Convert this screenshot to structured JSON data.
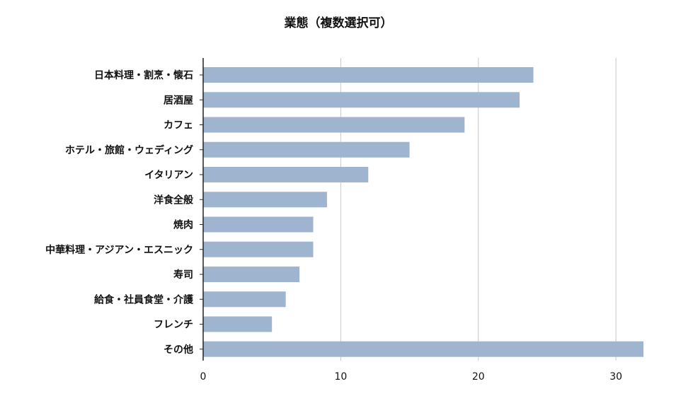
{
  "chart_data": {
    "type": "bar",
    "orientation": "horizontal",
    "title": "業態（複数選択可）",
    "xlabel": "",
    "ylabel": "",
    "categories": [
      "日本料理・割烹・懐石",
      "居酒屋",
      "カフェ",
      "ホテル・旅館・ウェディング",
      "イタリアン",
      "洋食全般",
      "焼肉",
      "中華料理・アジアン・エスニック",
      "寿司",
      "給食・社員食堂・介護",
      "フレンチ",
      "その他"
    ],
    "values": [
      24,
      23,
      19,
      15,
      12,
      9,
      8,
      8,
      7,
      6,
      5,
      32
    ],
    "xlim": [
      0,
      32
    ],
    "xticks": [
      0,
      10,
      20,
      30
    ],
    "xtick_labels": [
      "0",
      "10",
      "20",
      "30"
    ],
    "grid": true,
    "legend": "none",
    "colors": {
      "bar": "#9fb5cf",
      "grid": "#c8c8c8",
      "axis": "#222222",
      "text": "#111111"
    }
  }
}
